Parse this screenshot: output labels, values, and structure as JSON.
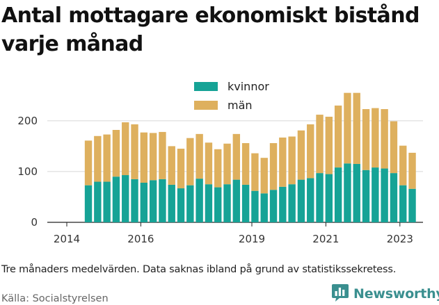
{
  "title": "Antal mottagare ekonomiskt bistånd varje månad",
  "caption": "Tre månaders medelvärden. Data saknas ibland på grund av statistikssekretess.",
  "source": "Källa: Socialstyrelsen",
  "brand": {
    "name": "Newsworthy",
    "color": "#3a8f8f",
    "icon": "bar-chart-logo-icon"
  },
  "chart_data": {
    "type": "bar",
    "stacked": true,
    "title": "",
    "xlabel": "",
    "ylabel": "",
    "ylim": [
      0,
      260
    ],
    "yticks": [
      0,
      100,
      200
    ],
    "xticks": [
      "2014",
      "2016",
      "2019",
      "2021",
      "2023"
    ],
    "grid": "horizontal",
    "legend": "top-center",
    "categories": [
      "2014-07",
      "2014-10",
      "2015-01",
      "2015-04",
      "2015-07",
      "2015-10",
      "2016-01",
      "2016-04",
      "2016-07",
      "2016-10",
      "2017-01",
      "2017-04",
      "2017-07",
      "2017-10",
      "2018-01",
      "2018-04",
      "2018-07",
      "2018-10",
      "2019-01",
      "2019-04",
      "2019-07",
      "2019-10",
      "2020-01",
      "2020-04",
      "2020-07",
      "2020-10",
      "2021-01",
      "2021-04",
      "2021-07",
      "2021-10",
      "2022-01",
      "2022-04",
      "2022-07",
      "2022-10",
      "2023-01",
      "2023-04"
    ],
    "series": [
      {
        "name": "kvinnor",
        "color": "#16a396",
        "values": [
          73,
          80,
          80,
          90,
          93,
          85,
          78,
          83,
          85,
          74,
          67,
          73,
          86,
          75,
          69,
          75,
          84,
          74,
          62,
          57,
          64,
          70,
          75,
          84,
          87,
          97,
          95,
          108,
          116,
          115,
          103,
          108,
          106,
          97,
          73,
          66
        ]
      },
      {
        "name": "män",
        "color": "#deb05e",
        "values": [
          88,
          90,
          93,
          92,
          104,
          108,
          99,
          93,
          93,
          76,
          78,
          93,
          88,
          82,
          75,
          80,
          90,
          82,
          74,
          70,
          92,
          97,
          94,
          97,
          106,
          115,
          113,
          122,
          139,
          140,
          120,
          117,
          117,
          102,
          78,
          71
        ]
      }
    ]
  }
}
